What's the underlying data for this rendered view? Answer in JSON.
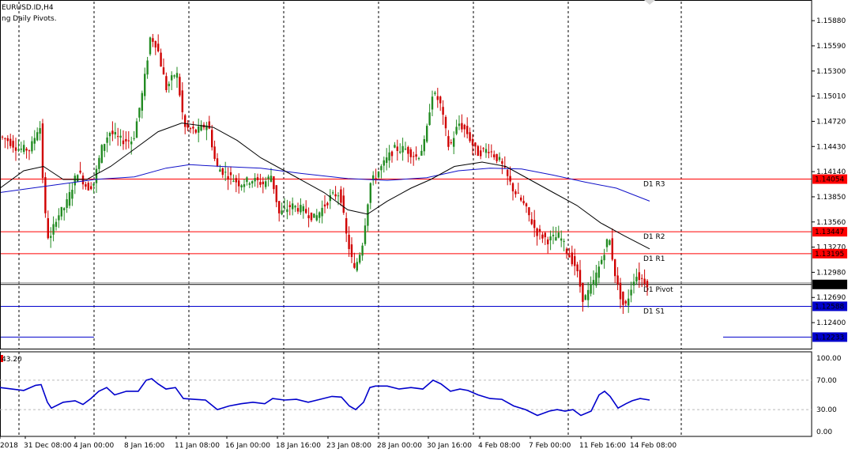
{
  "header": {
    "symbol": "EURUSD.ID,H4",
    "indicator": "ng Daily Pivots."
  },
  "colors": {
    "bull": "#228b22",
    "bear": "#d00000",
    "pivot_red": "#ff0000",
    "pivot_blue": "#0000cc",
    "ma_fast": "#000000",
    "ma_slow": "#1010c8",
    "rsi": "#0000cc",
    "grid": "#000000"
  },
  "chart_data": [
    {
      "type": "candlestick",
      "title": "EURUSD.ID,H4",
      "ylim": [
        1.121,
        1.161
      ],
      "y_ticks": [
        "1.15880",
        "1.15590",
        "1.15300",
        "1.15010",
        "1.14720",
        "1.14430",
        "1.14140",
        "1.13850",
        "1.13560",
        "1.13270",
        "1.12980",
        "1.12690",
        "1.12400"
      ],
      "x_tick_labels": [
        "2018",
        "31 Dec 08:00",
        "4 Jan 00:00",
        "8 Jan 16:00",
        "11 Jan 08:00",
        "16 Jan 00:00",
        "18 Jan 16:00",
        "23 Jan 08:00",
        "28 Jan 00:00",
        "30 Jan 16:00",
        "4 Feb 08:00",
        "7 Feb 00:00",
        "11 Feb 16:00",
        "14 Feb 08:00"
      ],
      "price_path": [
        [
          0,
          1.1455
        ],
        [
          12,
          1.145
        ],
        [
          25,
          1.144
        ],
        [
          40,
          1.144
        ],
        [
          52,
          1.147
        ],
        [
          58,
          1.137
        ],
        [
          64,
          1.133
        ],
        [
          72,
          1.136
        ],
        [
          85,
          1.1375
        ],
        [
          100,
          1.1415
        ],
        [
          112,
          1.1395
        ],
        [
          120,
          1.14
        ],
        [
          130,
          1.144
        ],
        [
          140,
          1.146
        ],
        [
          155,
          1.145
        ],
        [
          170,
          1.145
        ],
        [
          183,
          1.151
        ],
        [
          192,
          1.157
        ],
        [
          200,
          1.156
        ],
        [
          212,
          1.151
        ],
        [
          225,
          1.153
        ],
        [
          235,
          1.1465
        ],
        [
          250,
          1.146
        ],
        [
          265,
          1.147
        ],
        [
          275,
          1.142
        ],
        [
          290,
          1.141
        ],
        [
          305,
          1.14
        ],
        [
          320,
          1.1405
        ],
        [
          335,
          1.14
        ],
        [
          345,
          1.141
        ],
        [
          355,
          1.1365
        ],
        [
          370,
          1.1375
        ],
        [
          385,
          1.137
        ],
        [
          400,
          1.136
        ],
        [
          420,
          1.1385
        ],
        [
          432,
          1.139
        ],
        [
          440,
          1.134
        ],
        [
          450,
          1.13
        ],
        [
          460,
          1.133
        ],
        [
          470,
          1.14
        ],
        [
          485,
          1.142
        ],
        [
          500,
          1.144
        ],
        [
          515,
          1.144
        ],
        [
          530,
          1.143
        ],
        [
          540,
          1.145
        ],
        [
          548,
          1.1505
        ],
        [
          558,
          1.1495
        ],
        [
          570,
          1.144
        ],
        [
          582,
          1.147
        ],
        [
          592,
          1.146
        ],
        [
          605,
          1.1435
        ],
        [
          620,
          1.144
        ],
        [
          635,
          1.1425
        ],
        [
          650,
          1.1395
        ],
        [
          665,
          1.1375
        ],
        [
          680,
          1.1345
        ],
        [
          695,
          1.1335
        ],
        [
          710,
          1.134
        ],
        [
          720,
          1.132
        ],
        [
          730,
          1.1305
        ],
        [
          740,
          1.1265
        ],
        [
          752,
          1.1285
        ],
        [
          762,
          1.131
        ],
        [
          772,
          1.134
        ],
        [
          782,
          1.1285
        ],
        [
          792,
          1.1255
        ],
        [
          805,
          1.1295
        ],
        [
          815,
          1.129
        ],
        [
          822,
          1.1285
        ]
      ],
      "ma_fast_path": [
        [
          0,
          1.1395
        ],
        [
          30,
          1.1415
        ],
        [
          55,
          1.142
        ],
        [
          80,
          1.1405
        ],
        [
          110,
          1.1405
        ],
        [
          140,
          1.142
        ],
        [
          170,
          1.144
        ],
        [
          200,
          1.146
        ],
        [
          230,
          1.147
        ],
        [
          270,
          1.1465
        ],
        [
          300,
          1.145
        ],
        [
          330,
          1.143
        ],
        [
          370,
          1.141
        ],
        [
          410,
          1.139
        ],
        [
          440,
          1.137
        ],
        [
          465,
          1.1365
        ],
        [
          490,
          1.138
        ],
        [
          520,
          1.1395
        ],
        [
          545,
          1.1405
        ],
        [
          575,
          1.142
        ],
        [
          610,
          1.1425
        ],
        [
          640,
          1.142
        ],
        [
          670,
          1.1405
        ],
        [
          700,
          1.139
        ],
        [
          730,
          1.1375
        ],
        [
          760,
          1.1355
        ],
        [
          790,
          1.134
        ],
        [
          822,
          1.1325
        ]
      ],
      "ma_slow_path": [
        [
          0,
          1.139
        ],
        [
          40,
          1.1395
        ],
        [
          80,
          1.14
        ],
        [
          120,
          1.1405
        ],
        [
          170,
          1.1408
        ],
        [
          210,
          1.1418
        ],
        [
          240,
          1.1422
        ],
        [
          280,
          1.142
        ],
        [
          330,
          1.1418
        ],
        [
          380,
          1.1412
        ],
        [
          440,
          1.1406
        ],
        [
          490,
          1.1404
        ],
        [
          540,
          1.1407
        ],
        [
          580,
          1.1415
        ],
        [
          620,
          1.1418
        ],
        [
          660,
          1.1417
        ],
        [
          700,
          1.141
        ],
        [
          740,
          1.1402
        ],
        [
          780,
          1.1395
        ],
        [
          822,
          1.138
        ]
      ],
      "levels": [
        {
          "name": "D1 R3",
          "value": 1.14054,
          "label": "1.14054",
          "color": "red"
        },
        {
          "name": "D1 R2",
          "value": 1.13447,
          "label": "1.13447",
          "color": "red"
        },
        {
          "name": "D1 R1",
          "value": 1.13195,
          "label": "1.13195",
          "color": "red"
        },
        {
          "name": "D1 Pivot",
          "value": 1.1284,
          "label": "1.12840",
          "color": "black"
        },
        {
          "name": "D1 S1",
          "value": 1.12588,
          "label": "1.12588",
          "color": "blue"
        }
      ],
      "extra_level": {
        "value": 1.12233,
        "label": "1.12233"
      },
      "current_price": 1.1284
    },
    {
      "type": "line",
      "title": "43.20",
      "ylim": [
        0,
        100
      ],
      "y_ticks": [
        "100.00",
        "70.00",
        "30.00",
        "0.00"
      ],
      "levels": [
        70,
        30
      ],
      "series": [
        {
          "values": [
            [
              0,
              60
            ],
            [
              15,
              58
            ],
            [
              30,
              56
            ],
            [
              45,
              63
            ],
            [
              52,
              64
            ],
            [
              60,
              40
            ],
            [
              65,
              32
            ],
            [
              80,
              40
            ],
            [
              95,
              42
            ],
            [
              105,
              37
            ],
            [
              115,
              45
            ],
            [
              125,
              55
            ],
            [
              135,
              60
            ],
            [
              145,
              50
            ],
            [
              160,
              55
            ],
            [
              175,
              55
            ],
            [
              185,
              70
            ],
            [
              192,
              72
            ],
            [
              200,
              65
            ],
            [
              210,
              58
            ],
            [
              222,
              60
            ],
            [
              232,
              45
            ],
            [
              245,
              44
            ],
            [
              260,
              43
            ],
            [
              275,
              30
            ],
            [
              290,
              35
            ],
            [
              305,
              38
            ],
            [
              320,
              40
            ],
            [
              335,
              38
            ],
            [
              345,
              45
            ],
            [
              360,
              43
            ],
            [
              375,
              44
            ],
            [
              390,
              40
            ],
            [
              405,
              44
            ],
            [
              420,
              48
            ],
            [
              432,
              47
            ],
            [
              442,
              35
            ],
            [
              450,
              30
            ],
            [
              460,
              40
            ],
            [
              468,
              60
            ],
            [
              475,
              62
            ],
            [
              490,
              62
            ],
            [
              505,
              58
            ],
            [
              520,
              60
            ],
            [
              535,
              58
            ],
            [
              548,
              70
            ],
            [
              558,
              65
            ],
            [
              570,
              55
            ],
            [
              582,
              58
            ],
            [
              592,
              56
            ],
            [
              605,
              50
            ],
            [
              620,
              45
            ],
            [
              635,
              44
            ],
            [
              650,
              35
            ],
            [
              665,
              30
            ],
            [
              680,
              22
            ],
            [
              695,
              28
            ],
            [
              705,
              30
            ],
            [
              715,
              28
            ],
            [
              725,
              30
            ],
            [
              735,
              22
            ],
            [
              748,
              28
            ],
            [
              758,
              50
            ],
            [
              765,
              55
            ],
            [
              772,
              48
            ],
            [
              782,
              32
            ],
            [
              792,
              38
            ],
            [
              800,
              42
            ],
            [
              810,
              45
            ],
            [
              822,
              43
            ]
          ]
        }
      ]
    }
  ]
}
